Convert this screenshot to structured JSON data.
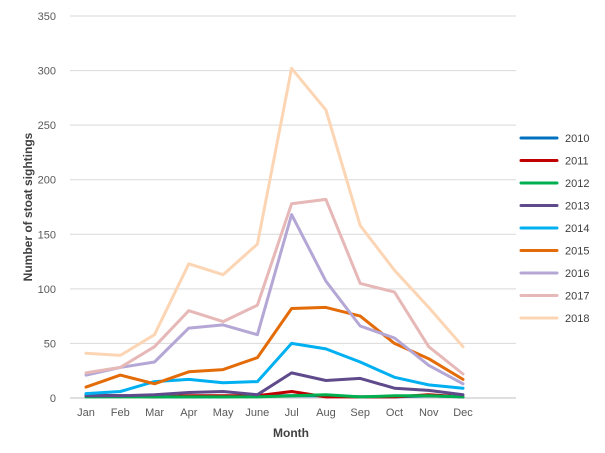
{
  "chart_data": {
    "type": "line",
    "title": "",
    "xlabel": "Month",
    "ylabel": "Number of stoat sightings",
    "categories": [
      "Jan",
      "Feb",
      "Mar",
      "Apr",
      "May",
      "June",
      "Jul",
      "Aug",
      "Sep",
      "Oct",
      "Nov",
      "Dec"
    ],
    "ylim": [
      0,
      350
    ],
    "yticks": [
      0,
      50,
      100,
      150,
      200,
      250,
      300,
      350
    ],
    "grid": true,
    "legend_position": "right",
    "series": [
      {
        "name": "2010",
        "color": "#0070C0",
        "values": [
          3,
          2,
          1,
          1,
          1,
          2,
          2,
          2,
          1,
          1,
          2,
          1
        ]
      },
      {
        "name": "2011",
        "color": "#C00000",
        "values": [
          2,
          2,
          1,
          2,
          2,
          2,
          6,
          1,
          1,
          1,
          3,
          1
        ]
      },
      {
        "name": "2012",
        "color": "#00B050",
        "values": [
          1,
          1,
          1,
          1,
          1,
          1,
          2,
          3,
          1,
          2,
          2,
          1
        ]
      },
      {
        "name": "2013",
        "color": "#5F4B8B",
        "values": [
          2,
          2,
          3,
          5,
          6,
          3,
          23,
          16,
          18,
          9,
          7,
          3
        ]
      },
      {
        "name": "2014",
        "color": "#00B0F0",
        "values": [
          4,
          6,
          15,
          17,
          14,
          15,
          50,
          45,
          33,
          19,
          12,
          9
        ]
      },
      {
        "name": "2015",
        "color": "#E36C09",
        "values": [
          10,
          21,
          13,
          24,
          26,
          37,
          82,
          83,
          75,
          50,
          36,
          17
        ]
      },
      {
        "name": "2016",
        "color": "#B4A7D6",
        "values": [
          21,
          28,
          33,
          64,
          67,
          58,
          168,
          107,
          66,
          55,
          30,
          13
        ]
      },
      {
        "name": "2017",
        "color": "#E6B8B7",
        "values": [
          23,
          28,
          47,
          80,
          70,
          85,
          178,
          182,
          105,
          97,
          47,
          22
        ]
      },
      {
        "name": "2018",
        "color": "#FCD5B4",
        "values": [
          41,
          39,
          58,
          123,
          113,
          141,
          302,
          264,
          158,
          117,
          83,
          47
        ]
      }
    ]
  }
}
